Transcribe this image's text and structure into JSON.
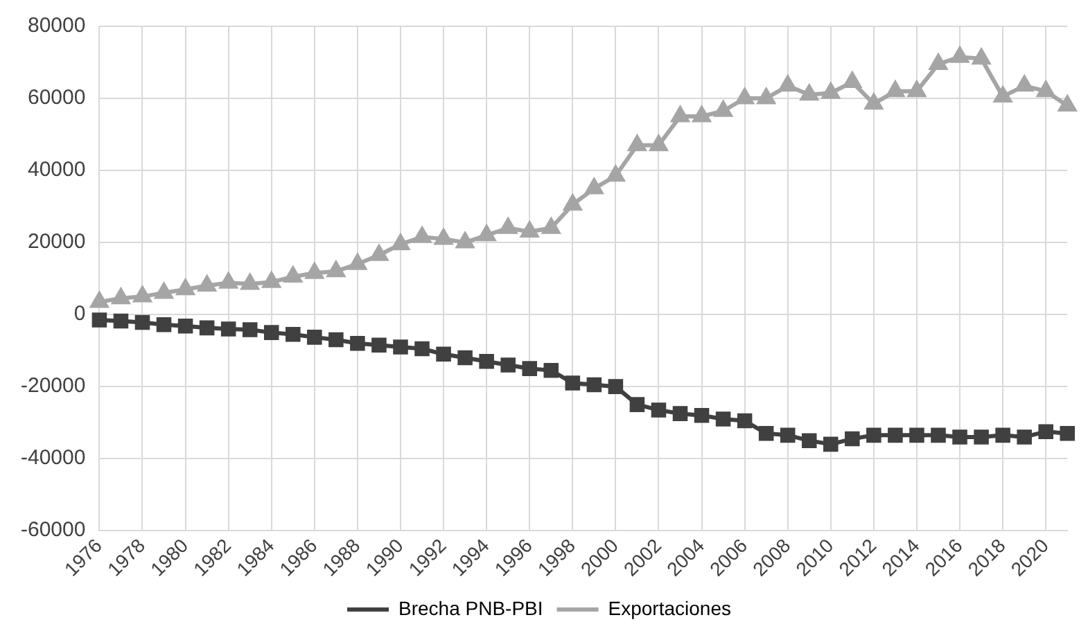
{
  "chart_data": {
    "type": "line",
    "categories": [
      "1976",
      null,
      "1978",
      null,
      "1980",
      null,
      "1982",
      null,
      "1984",
      null,
      "1986",
      null,
      "1988",
      null,
      "1990",
      null,
      "1992",
      null,
      "1994",
      null,
      "1996",
      null,
      "1998",
      null,
      "2000",
      null,
      "2002",
      null,
      "2004",
      null,
      "2006",
      null,
      "2008",
      null,
      "2010",
      null,
      "2012",
      null,
      "2014",
      null,
      "2016",
      null,
      "2018",
      null,
      "2020",
      null
    ],
    "series": [
      {
        "name": "Brecha PNB-PBI",
        "color": "#404040",
        "marker": "square",
        "values": [
          -1500,
          -1800,
          -2200,
          -2800,
          -3200,
          -3700,
          -4000,
          -4200,
          -5000,
          -5500,
          -6300,
          -7000,
          -8000,
          -8500,
          -9000,
          -9500,
          -11000,
          -12000,
          -13000,
          -14000,
          -15000,
          -15500,
          -19000,
          -19500,
          -20000,
          -25000,
          -26500,
          -27500,
          -28000,
          -29000,
          -29500,
          -33000,
          -33500,
          -35000,
          -36000,
          -34500,
          -33500,
          -33500,
          -33500,
          -33500,
          -34000,
          -34000,
          -33500,
          -34000,
          -32500,
          -33000
        ]
      },
      {
        "name": "Exportaciones",
        "color": "#a5a5a5",
        "marker": "triangle",
        "values": [
          3500,
          4500,
          5000,
          6000,
          7000,
          8000,
          8800,
          8500,
          9000,
          10500,
          11500,
          12000,
          14000,
          16500,
          19500,
          21500,
          21000,
          20000,
          22000,
          24000,
          23000,
          24000,
          30500,
          35000,
          38500,
          47000,
          47000,
          55000,
          55000,
          56500,
          60000,
          60000,
          63500,
          61000,
          61500,
          64500,
          58500,
          62000,
          62000,
          69500,
          71500,
          71000,
          60500,
          63500,
          62000,
          58000
        ]
      }
    ],
    "ylim": [
      -60000,
      80000
    ],
    "yticks": [
      -60000,
      -40000,
      -20000,
      0,
      20000,
      40000,
      60000,
      80000
    ],
    "grid": true,
    "legend": "bottom"
  }
}
